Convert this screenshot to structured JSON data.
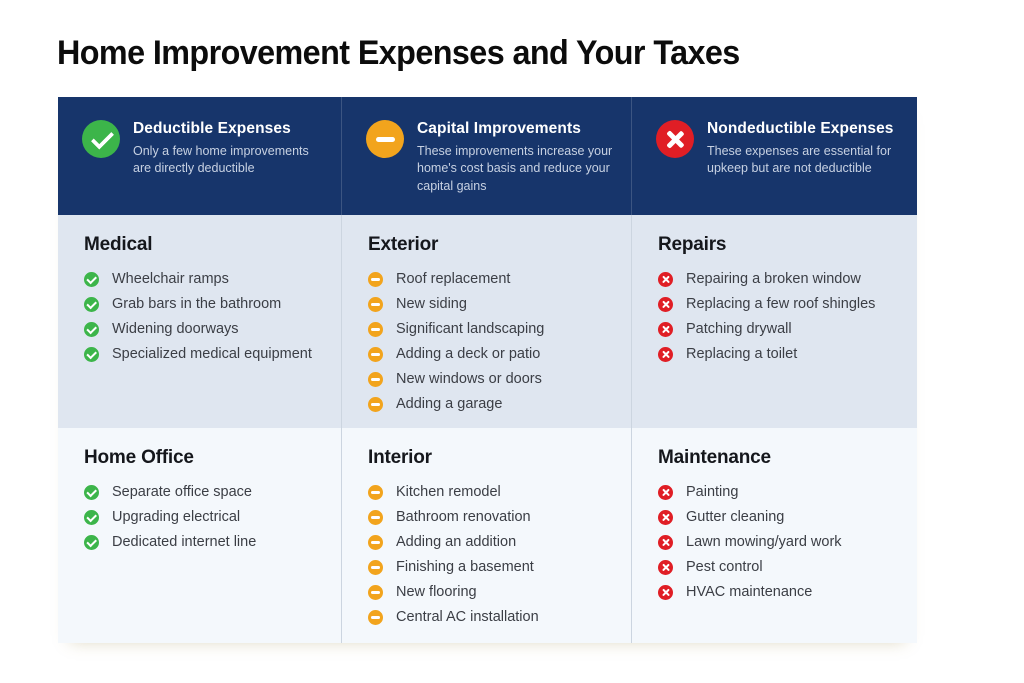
{
  "page": {
    "title": "Home Improvement Expenses and Your Taxes"
  },
  "colors": {
    "header_bg": "#17356B",
    "row1_bg": "#DFE6F0",
    "row2_bg": "#F4F8FC",
    "deductible_green": "#3CB54A",
    "capital_orange": "#F2A41D",
    "nondeductible_red": "#E01E25",
    "header_title_text": "#FFFFFF",
    "header_subtitle_text": "#C7D1E2",
    "section_heading_text": "#15171C",
    "item_text": "#3B3E45"
  },
  "columns": [
    {
      "title": "Deductible Expenses",
      "subtitle": "Only a few home improvements are directly deductible",
      "icon": "check-circle-icon",
      "accent": "#3CB54A",
      "sections": [
        {
          "heading": "Medical",
          "items": [
            "Wheelchair ramps",
            "Grab bars in the bathroom",
            "Widening doorways",
            "Specialized medical equipment"
          ]
        },
        {
          "heading": "Home Office",
          "items": [
            "Separate office space",
            "Upgrading electrical",
            "Dedicated internet line"
          ]
        }
      ]
    },
    {
      "title": "Capital Improvements",
      "subtitle": "These improvements increase your home's cost basis and reduce your capital gains",
      "icon": "minus-circle-icon",
      "accent": "#F2A41D",
      "sections": [
        {
          "heading": "Exterior",
          "items": [
            "Roof replacement",
            "New siding",
            "Significant landscaping",
            "Adding a deck or patio",
            "New windows or doors",
            "Adding a garage"
          ]
        },
        {
          "heading": "Interior",
          "items": [
            "Kitchen remodel",
            "Bathroom renovation",
            "Adding an addition",
            "Finishing a basement",
            "New flooring",
            "Central AC installation"
          ]
        }
      ]
    },
    {
      "title": "Nondeductible Expenses",
      "subtitle": "These expenses are essential for upkeep but are not deductible",
      "icon": "x-circle-icon",
      "accent": "#E01E25",
      "sections": [
        {
          "heading": "Repairs",
          "items": [
            "Repairing a broken window",
            "Replacing a few roof shingles",
            "Patching drywall",
            "Replacing a toilet"
          ]
        },
        {
          "heading": "Maintenance",
          "items": [
            "Painting",
            "Gutter cleaning",
            "Lawn mowing/yard work",
            "Pest control",
            "HVAC maintenance"
          ]
        }
      ]
    }
  ]
}
